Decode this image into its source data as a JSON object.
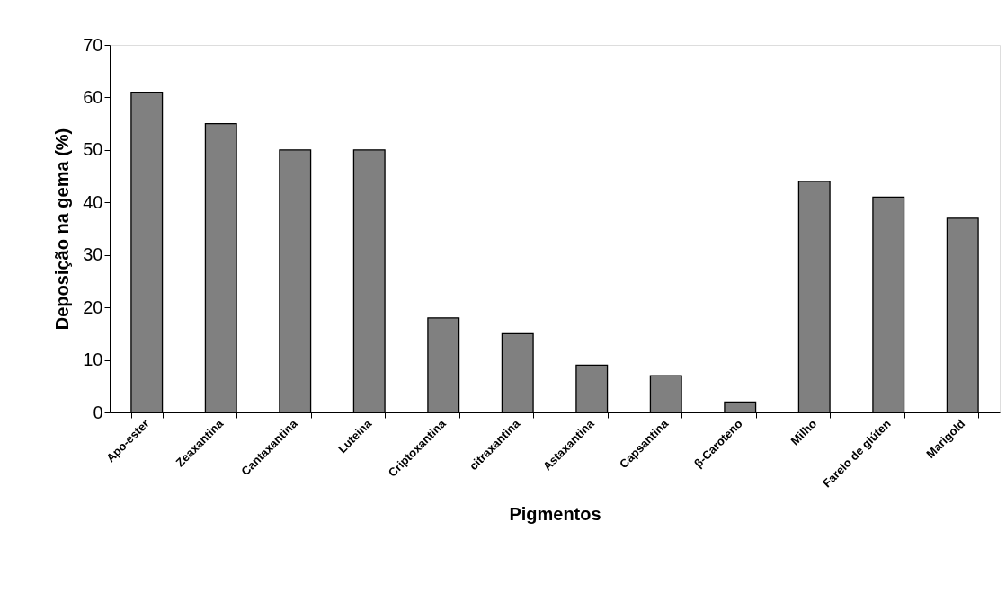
{
  "chart_data": {
    "type": "bar",
    "xlabel": "Pigmentos",
    "ylabel": "Deposição na gema (%)",
    "categories": [
      "Apo-ester",
      "Zeaxantina",
      "Cantaxantina",
      "Luteina",
      "Criptoxantina",
      "citraxantina",
      "Astaxantina",
      "Capsantina",
      "β-Caroteno",
      "Milho",
      "Farelo de glúten",
      "Marigold"
    ],
    "values": [
      61,
      55,
      50,
      50,
      18,
      15,
      9,
      7,
      2,
      44,
      41,
      37
    ],
    "color": "#808080",
    "ylim": [
      0,
      70
    ],
    "yticks": [
      0,
      10,
      20,
      30,
      40,
      50,
      60,
      70
    ],
    "grid": false
  }
}
